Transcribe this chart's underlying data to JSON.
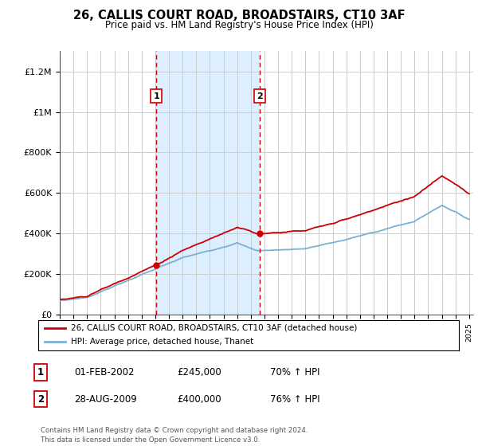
{
  "title": "26, CALLIS COURT ROAD, BROADSTAIRS, CT10 3AF",
  "subtitle": "Price paid vs. HM Land Registry's House Price Index (HPI)",
  "legend_line1": "26, CALLIS COURT ROAD, BROADSTAIRS, CT10 3AF (detached house)",
  "legend_line2": "HPI: Average price, detached house, Thanet",
  "sale1_label": "1",
  "sale1_date": "01-FEB-2002",
  "sale1_price": "£245,000",
  "sale1_hpi": "70% ↑ HPI",
  "sale2_label": "2",
  "sale2_date": "28-AUG-2009",
  "sale2_price": "£400,000",
  "sale2_hpi": "76% ↑ HPI",
  "footer": "Contains HM Land Registry data © Crown copyright and database right 2024.\nThis data is licensed under the Open Government Licence v3.0.",
  "hpi_color": "#7ab0d4",
  "property_color": "#cc0000",
  "sale_marker_color": "#cc0000",
  "shading_color": "#ddeeff",
  "ylim": [
    0,
    1300000
  ],
  "yticks": [
    0,
    200000,
    400000,
    600000,
    800000,
    1000000,
    1200000
  ],
  "ytick_labels": [
    "£0",
    "£200K",
    "£400K",
    "£600K",
    "£800K",
    "£1M",
    "£1.2M"
  ],
  "xstart_year": 1995,
  "xend_year": 2025,
  "sale1_year": 2002.08,
  "sale2_year": 2009.65,
  "background_color": "#ffffff",
  "grid_color": "#cccccc"
}
